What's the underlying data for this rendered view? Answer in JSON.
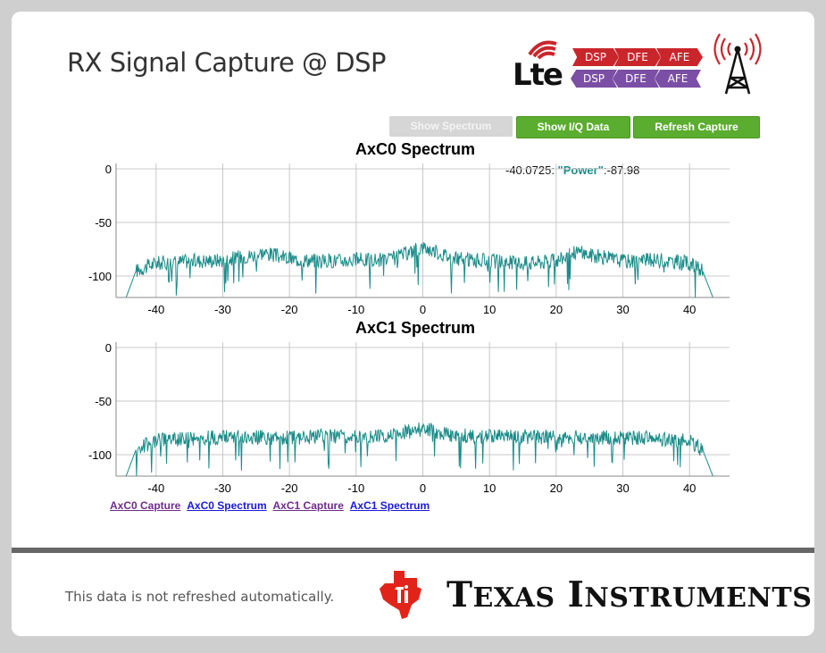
{
  "header": {
    "title": "RX Signal Capture @ DSP"
  },
  "logo": {
    "lte": "Lte",
    "chain_top": [
      "DSP",
      "DFE",
      "AFE"
    ],
    "chain_bottom": [
      "DSP",
      "DFE",
      "AFE"
    ],
    "icons": [
      "lte-logo-icon",
      "radio-tower-icon"
    ]
  },
  "toolbar": {
    "show_spectrum": "Show Spectrum",
    "show_iq": "Show I/Q Data",
    "refresh": "Refresh Capture"
  },
  "tooltip": {
    "x": "-40.0725: ",
    "key": "\"Power\"",
    "value": ":-87.98"
  },
  "colors": {
    "series": "#1a8c89",
    "button": "#5aad2e",
    "accent_red": "#c9262c",
    "accent_purple": "#7b4fa5"
  },
  "chart_data": [
    {
      "type": "line",
      "title": "AxC0 Spectrum",
      "xlabel": "",
      "ylabel": "",
      "xlim": [
        -46,
        46
      ],
      "ylim": [
        -120,
        5
      ],
      "xticks": [
        -40,
        -30,
        -20,
        -10,
        0,
        10,
        20,
        30,
        40
      ],
      "yticks": [
        0,
        -50,
        -100
      ],
      "grid": true,
      "series": [
        {
          "x": [
            -44.5,
            -43,
            -40,
            -35,
            -30,
            -25,
            -24,
            -20,
            -15,
            -10,
            -5,
            0,
            5,
            10,
            15,
            20,
            23,
            25,
            30,
            35,
            40,
            42,
            43.5
          ],
          "values": [
            -120,
            -95,
            -88,
            -86,
            -85,
            -80,
            -78,
            -84,
            -86,
            -85,
            -85,
            -73,
            -84,
            -86,
            -88,
            -86,
            -77,
            -80,
            -86,
            -85,
            -88,
            -96,
            -120
          ]
        }
      ]
    },
    {
      "type": "line",
      "title": "AxC1 Spectrum",
      "xlabel": "",
      "ylabel": "",
      "xlim": [
        -46,
        46
      ],
      "ylim": [
        -120,
        5
      ],
      "xticks": [
        -40,
        -30,
        -20,
        -10,
        0,
        10,
        20,
        30,
        40
      ],
      "yticks": [
        0,
        -50,
        -100
      ],
      "grid": true,
      "series": [
        {
          "x": [
            -44.5,
            -43,
            -40,
            -35,
            -30,
            -25,
            -20,
            -15,
            -10,
            -5,
            0,
            5,
            10,
            15,
            20,
            25,
            30,
            35,
            40,
            42,
            43.5
          ],
          "values": [
            -120,
            -95,
            -87,
            -85,
            -84,
            -84,
            -84,
            -83,
            -83,
            -82,
            -76,
            -82,
            -83,
            -83,
            -84,
            -84,
            -84,
            -85,
            -87,
            -96,
            -120
          ]
        }
      ]
    }
  ],
  "links": [
    "AxC0 Capture",
    "AxC0 Spectrum",
    "AxC1 Capture",
    "AxC1 Spectrum"
  ],
  "footer": {
    "note": "This data is not refreshed automatically.",
    "brand_1": "T",
    "brand_2": "EXAS",
    "brand_3": " I",
    "brand_4": "NSTRUMENTS"
  }
}
